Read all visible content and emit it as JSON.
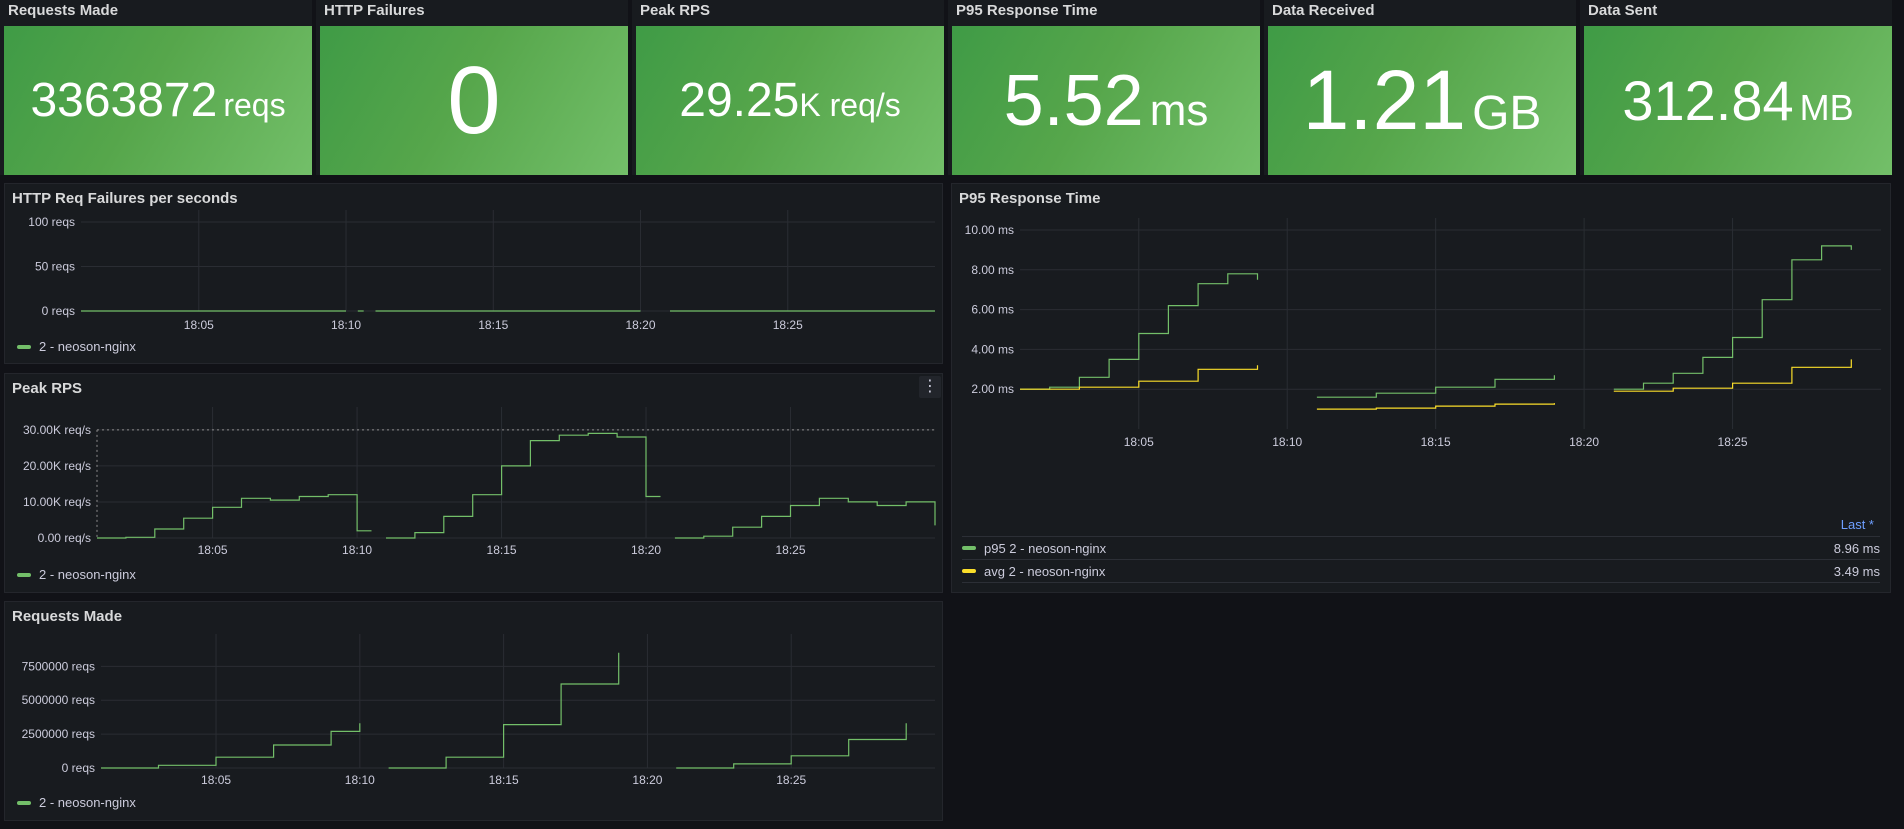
{
  "stats": [
    {
      "title": "Requests Made",
      "value": "3363872",
      "unit": "reqs"
    },
    {
      "title": "HTTP Failures",
      "value": "0",
      "unit": ""
    },
    {
      "title": "Peak RPS",
      "value": "29.25",
      "unit": "K req/s"
    },
    {
      "title": "P95 Response Time",
      "value": "5.52",
      "unit": "ms"
    },
    {
      "title": "Data Received",
      "value": "1.21",
      "unit": "GB"
    },
    {
      "title": "Data Sent",
      "value": "312.84",
      "unit": "MB"
    }
  ],
  "colors": {
    "green": "#73bf69",
    "yellow": "#fade2a",
    "accent": "#6e9fff"
  },
  "panels": {
    "failures": {
      "title": "HTTP Req Failures per seconds",
      "legend": "2 - neoson-nginx",
      "menu_icon": "more-vertical-icon"
    },
    "peak_rps": {
      "title": "Peak RPS",
      "legend": "2 - neoson-nginx",
      "menu_icon": "more-vertical-icon"
    },
    "requests": {
      "title": "Requests Made",
      "legend": "2 - neoson-nginx"
    },
    "p95": {
      "title": "P95 Response Time",
      "legend_header": "Last *",
      "legend_rows": [
        {
          "name": "p95 2 - neoson-nginx",
          "value": "8.96 ms"
        },
        {
          "name": "avg 2 - neoson-nginx",
          "value": "3.49 ms"
        }
      ]
    }
  },
  "chart_data": [
    {
      "id": "failures",
      "type": "line",
      "x_ticks": [
        "18:05",
        "18:10",
        "18:15",
        "18:20",
        "18:25"
      ],
      "y_ticks": [
        "0 reqs",
        "50 reqs",
        "100 reqs"
      ],
      "ylim": [
        0,
        100
      ],
      "xlim": [
        "18:01",
        "18:30"
      ],
      "series": [
        {
          "name": "2 - neoson-nginx",
          "segments": [
            [
              [
                "18:01",
                0
              ],
              [
                "18:10",
                0
              ]
            ],
            [
              [
                "18:10.4",
                0
              ],
              [
                "18:10.6",
                0
              ]
            ],
            [
              [
                "18:11",
                0
              ],
              [
                "18:20",
                0
              ]
            ],
            [
              [
                "18:21",
                0
              ],
              [
                "18:30",
                0
              ]
            ]
          ]
        }
      ]
    },
    {
      "id": "peak_rps",
      "type": "line",
      "x_ticks": [
        "18:05",
        "18:10",
        "18:15",
        "18:20",
        "18:25"
      ],
      "y_ticks": [
        "0.00 req/s",
        "10.00K req/s",
        "20.00K req/s",
        "30.00K req/s"
      ],
      "ylim": [
        0,
        33000
      ],
      "threshold": 30000,
      "series": [
        {
          "name": "2 - neoson-nginx",
          "segments": [
            [
              [
                "18:01",
                0
              ],
              [
                "18:02",
                200
              ],
              [
                "18:03",
                2500
              ],
              [
                "18:04",
                5500
              ],
              [
                "18:05",
                8500
              ],
              [
                "18:06",
                11000
              ],
              [
                "18:07",
                10500
              ],
              [
                "18:08",
                11500
              ],
              [
                "18:09",
                12000
              ],
              [
                "18:10",
                2000
              ],
              [
                "18:10.5",
                2000
              ]
            ],
            [
              [
                "18:11",
                0
              ],
              [
                "18:12",
                1500
              ],
              [
                "18:13",
                6000
              ],
              [
                "18:14",
                12000
              ],
              [
                "18:15",
                20000
              ],
              [
                "18:16",
                27000
              ],
              [
                "18:17",
                28500
              ],
              [
                "18:18",
                29000
              ],
              [
                "18:19",
                28000
              ],
              [
                "18:20",
                11500
              ],
              [
                "18:20.5",
                11500
              ]
            ],
            [
              [
                "18:21",
                0
              ],
              [
                "18:22",
                500
              ],
              [
                "18:23",
                3000
              ],
              [
                "18:24",
                6000
              ],
              [
                "18:25",
                9000
              ],
              [
                "18:26",
                11000
              ],
              [
                "18:27",
                10000
              ],
              [
                "18:28",
                9000
              ],
              [
                "18:29",
                10000
              ],
              [
                "18:30",
                3500
              ]
            ]
          ]
        }
      ]
    },
    {
      "id": "requests",
      "type": "line",
      "x_ticks": [
        "18:05",
        "18:10",
        "18:15",
        "18:20",
        "18:25"
      ],
      "y_ticks": [
        "0 reqs",
        "2500000 reqs",
        "5000000 reqs",
        "7500000 reqs"
      ],
      "ylim": [
        0,
        9000000
      ],
      "series": [
        {
          "name": "2 - neoson-nginx",
          "segments": [
            [
              [
                "18:01",
                0
              ],
              [
                "18:03",
                200000
              ],
              [
                "18:05",
                800000
              ],
              [
                "18:07",
                1700000
              ],
              [
                "18:09",
                2700000
              ],
              [
                "18:10",
                3300000
              ]
            ],
            [
              [
                "18:11",
                0
              ],
              [
                "18:13",
                800000
              ],
              [
                "18:15",
                3200000
              ],
              [
                "18:17",
                6200000
              ],
              [
                "18:19",
                8500000
              ]
            ],
            [
              [
                "18:21",
                0
              ],
              [
                "18:23",
                300000
              ],
              [
                "18:25",
                900000
              ],
              [
                "18:27",
                2100000
              ],
              [
                "18:29",
                3300000
              ]
            ]
          ]
        }
      ]
    },
    {
      "id": "p95",
      "type": "line",
      "x_ticks": [
        "18:05",
        "18:10",
        "18:15",
        "18:20",
        "18:25"
      ],
      "y_ticks": [
        "2.00 ms",
        "4.00 ms",
        "6.00 ms",
        "8.00 ms",
        "10.00 ms"
      ],
      "ylim": [
        0,
        10
      ],
      "series": [
        {
          "name": "p95 2 - neoson-nginx",
          "segments": [
            [
              [
                "18:01",
                2.0
              ],
              [
                "18:02",
                2.1
              ],
              [
                "18:03",
                2.6
              ],
              [
                "18:04",
                3.5
              ],
              [
                "18:05",
                4.8
              ],
              [
                "18:06",
                6.2
              ],
              [
                "18:07",
                7.3
              ],
              [
                "18:08",
                7.8
              ],
              [
                "18:09",
                7.5
              ]
            ],
            [
              [
                "18:11",
                1.6
              ],
              [
                "18:13",
                1.8
              ],
              [
                "18:15",
                2.1
              ],
              [
                "18:17",
                2.5
              ],
              [
                "18:19",
                2.7
              ]
            ],
            [
              [
                "18:21",
                2.0
              ],
              [
                "18:22",
                2.3
              ],
              [
                "18:23",
                2.8
              ],
              [
                "18:24",
                3.6
              ],
              [
                "18:25",
                4.6
              ],
              [
                "18:26",
                6.5
              ],
              [
                "18:27",
                8.5
              ],
              [
                "18:28",
                9.2
              ],
              [
                "18:29",
                9.0
              ]
            ]
          ]
        },
        {
          "name": "avg 2 - neoson-nginx",
          "segments": [
            [
              [
                "18:01",
                2.0
              ],
              [
                "18:03",
                2.1
              ],
              [
                "18:05",
                2.4
              ],
              [
                "18:07",
                3.0
              ],
              [
                "18:09",
                3.2
              ]
            ],
            [
              [
                "18:11",
                1.0
              ],
              [
                "18:13",
                1.05
              ],
              [
                "18:15",
                1.15
              ],
              [
                "18:17",
                1.25
              ],
              [
                "18:19",
                1.3
              ]
            ],
            [
              [
                "18:21",
                1.9
              ],
              [
                "18:23",
                2.05
              ],
              [
                "18:25",
                2.3
              ],
              [
                "18:27",
                3.1
              ],
              [
                "18:29",
                3.5
              ]
            ]
          ]
        }
      ]
    }
  ]
}
